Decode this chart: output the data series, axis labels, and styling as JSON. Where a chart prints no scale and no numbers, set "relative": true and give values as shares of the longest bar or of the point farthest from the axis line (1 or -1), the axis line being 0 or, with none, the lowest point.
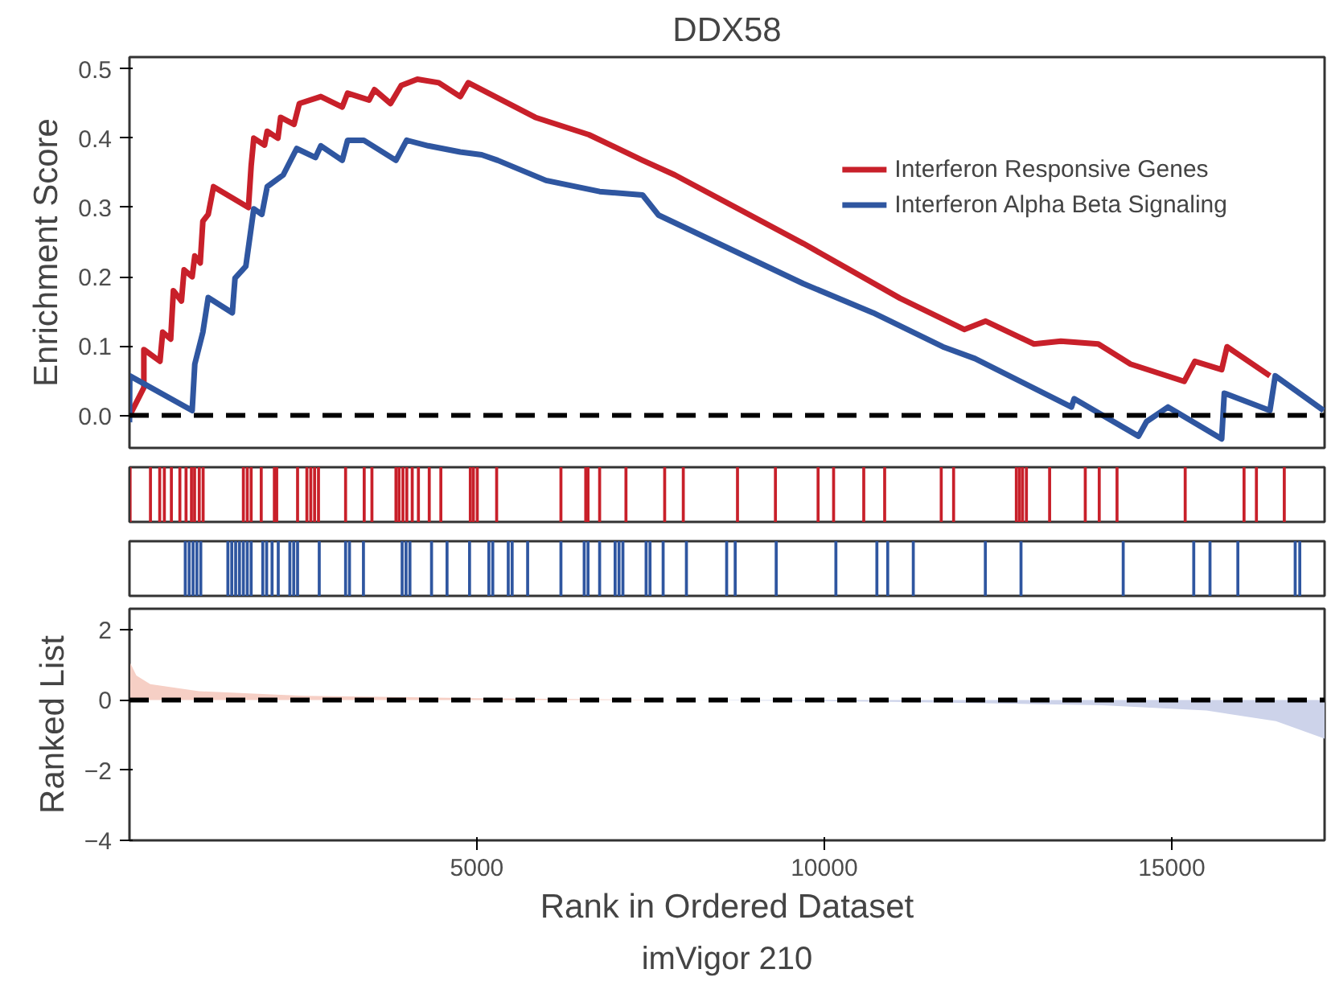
{
  "chart_data": [
    {
      "type": "line",
      "title": "DDX58",
      "ylabel": "Enrichment Score",
      "xlim": [
        1,
        17200
      ],
      "ylim": [
        -0.047,
        0.517
      ],
      "yticks": [
        {
          "value": 0,
          "label": "0.0"
        },
        0.1,
        0.2,
        0.3,
        0.4,
        0.5
      ],
      "tick_labels": "y",
      "legend": "top right",
      "line_style": "solid",
      "ref_lines": [
        {
          "axis": "y",
          "value": 0,
          "color": "#000000",
          "line_style": "dashed"
        }
      ],
      "series": [
        {
          "name": "Interferon Responsive Genes",
          "color": "#c8202a",
          "x": [
            5,
            208,
            208,
            440,
            479,
            594,
            633,
            749,
            787,
            903,
            941,
            1019,
            1057,
            1134,
            1211,
            1713,
            1752,
            1790,
            1945,
            1983,
            2137,
            2176,
            2369,
            2446,
            2755,
            3063,
            3140,
            3449,
            3526,
            3758,
            3912,
            4144,
            4452,
            4761,
            4877,
            5841,
            6613,
            7385,
            7848,
            9699,
            11090,
            12014,
            12323,
            13018,
            13404,
            13944,
            14407,
            15179,
            15333,
            15719,
            15796,
            16413
          ],
          "values": [
            0.0,
            0.04,
            0.095,
            0.078,
            0.12,
            0.11,
            0.18,
            0.165,
            0.21,
            0.2,
            0.23,
            0.22,
            0.28,
            0.29,
            0.33,
            0.3,
            0.36,
            0.4,
            0.39,
            0.41,
            0.4,
            0.43,
            0.42,
            0.45,
            0.46,
            0.445,
            0.465,
            0.455,
            0.47,
            0.45,
            0.476,
            0.485,
            0.48,
            0.46,
            0.48,
            0.43,
            0.405,
            0.368,
            0.347,
            0.248,
            0.169,
            0.124,
            0.136,
            0.103,
            0.107,
            0.103,
            0.074,
            0.049,
            0.078,
            0.066,
            0.099,
            0.057
          ]
        },
        {
          "name": "Interferon Alpha Beta Signaling",
          "color": "#2f56a0",
          "x": [
            1,
            5,
            903,
            941,
            1057,
            1134,
            1481,
            1520,
            1675,
            1790,
            1906,
            1983,
            2214,
            2407,
            2677,
            2755,
            3063,
            3140,
            3372,
            3835,
            3990,
            4300,
            4761,
            5070,
            5300,
            5995,
            6767,
            7385,
            7615,
            9699,
            10702,
            11706,
            12168,
            13557,
            13596,
            14522,
            14638,
            14947,
            15719,
            15757,
            16413,
            16490,
            17185
          ],
          "values": [
            -0.01,
            0.057,
            0.007,
            0.074,
            0.12,
            0.17,
            0.148,
            0.198,
            0.215,
            0.298,
            0.29,
            0.33,
            0.347,
            0.385,
            0.372,
            0.389,
            0.368,
            0.397,
            0.397,
            0.368,
            0.397,
            0.389,
            0.38,
            0.376,
            0.368,
            0.339,
            0.323,
            0.318,
            0.289,
            0.19,
            0.148,
            0.099,
            0.082,
            0.012,
            0.024,
            -0.03,
            -0.009,
            0.012,
            -0.034,
            0.032,
            0.007,
            0.057,
            0.007
          ]
        }
      ]
    },
    {
      "type": "bar",
      "relative": true,
      "tick_labels": false,
      "xlim": [
        1,
        17200
      ],
      "color": "#c8202a",
      "x": [
        10,
        303,
        436,
        503,
        604,
        726,
        815,
        893,
        938,
        1005,
        1061,
        1640,
        1696,
        1752,
        1897,
        2086,
        2120,
        2420,
        2554,
        2610,
        2665,
        2721,
        3111,
        3379,
        3490,
        3836,
        3880,
        3936,
        3992,
        4070,
        4159,
        4315,
        4482,
        4906,
        4950,
        5006,
        5285,
        6210,
        6567,
        6600,
        6767,
        7146,
        7703,
        7971,
        8751,
        9297,
        9911,
        10134,
        10568,
        10869,
        11683,
        11861,
        12764,
        12809,
        12853,
        12909,
        13243,
        13756,
        13957,
        14213,
        15194,
        16041,
        16219,
        16620
      ],
      "values": [
        1,
        1,
        1,
        1,
        1,
        1,
        1,
        1,
        1,
        1,
        1,
        1,
        1,
        1,
        1,
        1,
        1,
        1,
        1,
        1,
        1,
        1,
        1,
        1,
        1,
        1,
        1,
        1,
        1,
        1,
        1,
        1,
        1,
        1,
        1,
        1,
        1,
        1,
        1,
        1,
        1,
        1,
        1,
        1,
        1,
        1,
        1,
        1,
        1,
        1,
        1,
        1,
        1,
        1,
        1,
        1,
        1,
        1,
        1,
        1,
        1,
        1,
        1,
        1
      ]
    },
    {
      "type": "bar",
      "relative": true,
      "tick_labels": false,
      "xlim": [
        1,
        17200
      ],
      "color": "#2f56a0",
      "x": [
        804,
        860,
        916,
        971,
        1027,
        1417,
        1473,
        1529,
        1584,
        1640,
        1696,
        1752,
        1919,
        1975,
        2053,
        2142,
        2309,
        2365,
        2420,
        2732,
        3111,
        3167,
        3368,
        3925,
        3981,
        4037,
        4348,
        4571,
        4895,
        5173,
        5229,
        5452,
        5508,
        5731,
        6210,
        6545,
        6600,
        6767,
        6990,
        7046,
        7102,
        7436,
        7492,
        7681,
        8016,
        8595,
        8718,
        9308,
        10167,
        10757,
        10913,
        11281,
        12318,
        12831,
        14302,
        15317,
        15551,
        15952,
        16777,
        16843
      ],
      "values": [
        1,
        1,
        1,
        1,
        1,
        1,
        1,
        1,
        1,
        1,
        1,
        1,
        1,
        1,
        1,
        1,
        1,
        1,
        1,
        1,
        1,
        1,
        1,
        1,
        1,
        1,
        1,
        1,
        1,
        1,
        1,
        1,
        1,
        1,
        1,
        1,
        1,
        1,
        1,
        1,
        1,
        1,
        1,
        1,
        1,
        1,
        1,
        1,
        1,
        1,
        1,
        1,
        1,
        1,
        1,
        1,
        1,
        1,
        1,
        1
      ]
    },
    {
      "type": "area",
      "ylabel": "Ranked List",
      "xlabel": "Rank in Ordered Dataset",
      "annotations": [
        "imVigor 210"
      ],
      "xlim": [
        1,
        17200
      ],
      "ylim": [
        -4,
        2.6
      ],
      "xticks": [
        5000,
        10000,
        15000
      ],
      "yticks": [
        -4,
        -2,
        0,
        2
      ],
      "ref_lines": [
        {
          "axis": "y",
          "value": 0,
          "color": "#000000",
          "line_style": "dashed"
        }
      ],
      "series": [
        {
          "color": "#f6cfc5",
          "x": [
            1,
            100,
            300,
            1000,
            2500,
            5000,
            8000
          ],
          "values": [
            1.1,
            0.7,
            0.45,
            0.25,
            0.12,
            0.05,
            0
          ]
        },
        {
          "color": "#cdd3ea",
          "x": [
            8000,
            11000,
            14000,
            15500,
            16500,
            17200
          ],
          "values": [
            0,
            -0.05,
            -0.15,
            -0.3,
            -0.6,
            -1.1
          ]
        }
      ]
    }
  ]
}
